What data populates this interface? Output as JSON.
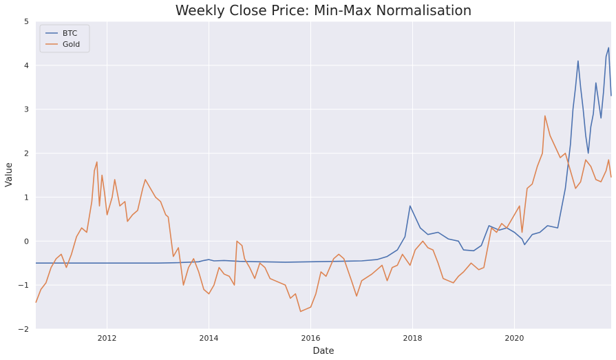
{
  "chart_data": {
    "type": "line",
    "title": "Weekly Close Price: Min-Max Normalisation",
    "xlabel": "Date",
    "ylabel": "Value",
    "xlim": [
      2010.6,
      2021.9
    ],
    "ylim": [
      -2,
      5
    ],
    "xticks": [
      2012,
      2014,
      2016,
      2018,
      2020
    ],
    "xtick_labels": [
      "2012",
      "2014",
      "2016",
      "2018",
      "2020"
    ],
    "yticks": [
      -2,
      -1,
      0,
      1,
      2,
      3,
      4,
      5
    ],
    "ytick_labels": [
      "−2",
      "−1",
      "0",
      "1",
      "2",
      "3",
      "4",
      "5"
    ],
    "grid": true,
    "legend": {
      "placement": "top-left"
    },
    "background_color": "#eaeaf2",
    "series": [
      {
        "name": "BTC",
        "color": "#4c72b0",
        "points": [
          [
            2010.6,
            -0.5
          ],
          [
            2011.0,
            -0.5
          ],
          [
            2011.5,
            -0.5
          ],
          [
            2012.0,
            -0.5
          ],
          [
            2012.5,
            -0.5
          ],
          [
            2013.0,
            -0.5
          ],
          [
            2013.4,
            -0.49
          ],
          [
            2013.8,
            -0.47
          ],
          [
            2013.9,
            -0.44
          ],
          [
            2014.0,
            -0.42
          ],
          [
            2014.1,
            -0.45
          ],
          [
            2014.3,
            -0.44
          ],
          [
            2014.6,
            -0.46
          ],
          [
            2015.0,
            -0.47
          ],
          [
            2015.5,
            -0.48
          ],
          [
            2016.0,
            -0.47
          ],
          [
            2016.5,
            -0.46
          ],
          [
            2017.0,
            -0.45
          ],
          [
            2017.3,
            -0.42
          ],
          [
            2017.5,
            -0.35
          ],
          [
            2017.7,
            -0.2
          ],
          [
            2017.85,
            0.1
          ],
          [
            2017.95,
            0.8
          ],
          [
            2018.05,
            0.55
          ],
          [
            2018.15,
            0.3
          ],
          [
            2018.3,
            0.15
          ],
          [
            2018.5,
            0.2
          ],
          [
            2018.7,
            0.05
          ],
          [
            2018.9,
            0.0
          ],
          [
            2019.0,
            -0.2
          ],
          [
            2019.2,
            -0.22
          ],
          [
            2019.35,
            -0.1
          ],
          [
            2019.5,
            0.35
          ],
          [
            2019.7,
            0.25
          ],
          [
            2019.85,
            0.3
          ],
          [
            2020.0,
            0.2
          ],
          [
            2020.15,
            0.05
          ],
          [
            2020.2,
            -0.08
          ],
          [
            2020.35,
            0.15
          ],
          [
            2020.5,
            0.2
          ],
          [
            2020.65,
            0.35
          ],
          [
            2020.85,
            0.3
          ],
          [
            2021.0,
            1.2
          ],
          [
            2021.1,
            2.2
          ],
          [
            2021.15,
            3.0
          ],
          [
            2021.2,
            3.5
          ],
          [
            2021.25,
            4.1
          ],
          [
            2021.3,
            3.5
          ],
          [
            2021.35,
            3.0
          ],
          [
            2021.4,
            2.4
          ],
          [
            2021.45,
            2.0
          ],
          [
            2021.5,
            2.6
          ],
          [
            2021.55,
            2.9
          ],
          [
            2021.6,
            3.6
          ],
          [
            2021.65,
            3.2
          ],
          [
            2021.7,
            2.8
          ],
          [
            2021.75,
            3.4
          ],
          [
            2021.8,
            4.2
          ],
          [
            2021.85,
            4.4
          ],
          [
            2021.9,
            3.3
          ]
        ]
      },
      {
        "name": "Gold",
        "color": "#dd8452",
        "points": [
          [
            2010.6,
            -1.4
          ],
          [
            2010.7,
            -1.1
          ],
          [
            2010.8,
            -0.95
          ],
          [
            2010.9,
            -0.6
          ],
          [
            2011.0,
            -0.4
          ],
          [
            2011.1,
            -0.3
          ],
          [
            2011.2,
            -0.6
          ],
          [
            2011.3,
            -0.3
          ],
          [
            2011.4,
            0.1
          ],
          [
            2011.5,
            0.3
          ],
          [
            2011.6,
            0.2
          ],
          [
            2011.7,
            0.9
          ],
          [
            2011.75,
            1.6
          ],
          [
            2011.8,
            1.8
          ],
          [
            2011.85,
            0.8
          ],
          [
            2011.9,
            1.5
          ],
          [
            2011.95,
            1.1
          ],
          [
            2012.0,
            0.6
          ],
          [
            2012.1,
            1.0
          ],
          [
            2012.15,
            1.4
          ],
          [
            2012.25,
            0.8
          ],
          [
            2012.35,
            0.9
          ],
          [
            2012.4,
            0.45
          ],
          [
            2012.5,
            0.6
          ],
          [
            2012.6,
            0.7
          ],
          [
            2012.7,
            1.2
          ],
          [
            2012.75,
            1.4
          ],
          [
            2012.85,
            1.2
          ],
          [
            2012.95,
            1.0
          ],
          [
            2013.05,
            0.9
          ],
          [
            2013.15,
            0.6
          ],
          [
            2013.2,
            0.55
          ],
          [
            2013.3,
            -0.35
          ],
          [
            2013.4,
            -0.15
          ],
          [
            2013.5,
            -1.0
          ],
          [
            2013.6,
            -0.6
          ],
          [
            2013.7,
            -0.4
          ],
          [
            2013.8,
            -0.7
          ],
          [
            2013.9,
            -1.1
          ],
          [
            2014.0,
            -1.2
          ],
          [
            2014.1,
            -1.0
          ],
          [
            2014.2,
            -0.6
          ],
          [
            2014.3,
            -0.75
          ],
          [
            2014.4,
            -0.8
          ],
          [
            2014.5,
            -1.0
          ],
          [
            2014.55,
            0.0
          ],
          [
            2014.65,
            -0.1
          ],
          [
            2014.7,
            -0.4
          ],
          [
            2014.8,
            -0.6
          ],
          [
            2014.9,
            -0.85
          ],
          [
            2015.0,
            -0.5
          ],
          [
            2015.1,
            -0.6
          ],
          [
            2015.2,
            -0.85
          ],
          [
            2015.3,
            -0.9
          ],
          [
            2015.5,
            -1.0
          ],
          [
            2015.6,
            -1.3
          ],
          [
            2015.7,
            -1.2
          ],
          [
            2015.8,
            -1.6
          ],
          [
            2015.9,
            -1.55
          ],
          [
            2016.0,
            -1.5
          ],
          [
            2016.1,
            -1.2
          ],
          [
            2016.2,
            -0.7
          ],
          [
            2016.3,
            -0.8
          ],
          [
            2016.45,
            -0.4
          ],
          [
            2016.55,
            -0.3
          ],
          [
            2016.65,
            -0.4
          ],
          [
            2016.8,
            -0.9
          ],
          [
            2016.9,
            -1.25
          ],
          [
            2017.0,
            -0.9
          ],
          [
            2017.2,
            -0.75
          ],
          [
            2017.4,
            -0.55
          ],
          [
            2017.5,
            -0.9
          ],
          [
            2017.6,
            -0.6
          ],
          [
            2017.7,
            -0.55
          ],
          [
            2017.8,
            -0.3
          ],
          [
            2017.95,
            -0.55
          ],
          [
            2018.05,
            -0.2
          ],
          [
            2018.2,
            0.0
          ],
          [
            2018.3,
            -0.15
          ],
          [
            2018.4,
            -0.2
          ],
          [
            2018.5,
            -0.5
          ],
          [
            2018.6,
            -0.85
          ],
          [
            2018.7,
            -0.9
          ],
          [
            2018.8,
            -0.95
          ],
          [
            2018.9,
            -0.8
          ],
          [
            2019.0,
            -0.7
          ],
          [
            2019.15,
            -0.5
          ],
          [
            2019.3,
            -0.65
          ],
          [
            2019.4,
            -0.6
          ],
          [
            2019.5,
            0.0
          ],
          [
            2019.55,
            0.3
          ],
          [
            2019.65,
            0.2
          ],
          [
            2019.75,
            0.4
          ],
          [
            2019.85,
            0.3
          ],
          [
            2019.95,
            0.5
          ],
          [
            2020.0,
            0.6
          ],
          [
            2020.1,
            0.8
          ],
          [
            2020.15,
            0.2
          ],
          [
            2020.25,
            1.2
          ],
          [
            2020.35,
            1.3
          ],
          [
            2020.45,
            1.7
          ],
          [
            2020.55,
            2.0
          ],
          [
            2020.6,
            2.85
          ],
          [
            2020.7,
            2.4
          ],
          [
            2020.8,
            2.15
          ],
          [
            2020.9,
            1.9
          ],
          [
            2021.0,
            2.0
          ],
          [
            2021.1,
            1.6
          ],
          [
            2021.2,
            1.2
          ],
          [
            2021.3,
            1.35
          ],
          [
            2021.4,
            1.85
          ],
          [
            2021.5,
            1.7
          ],
          [
            2021.6,
            1.4
          ],
          [
            2021.7,
            1.35
          ],
          [
            2021.8,
            1.6
          ],
          [
            2021.85,
            1.85
          ],
          [
            2021.9,
            1.45
          ]
        ]
      }
    ]
  }
}
